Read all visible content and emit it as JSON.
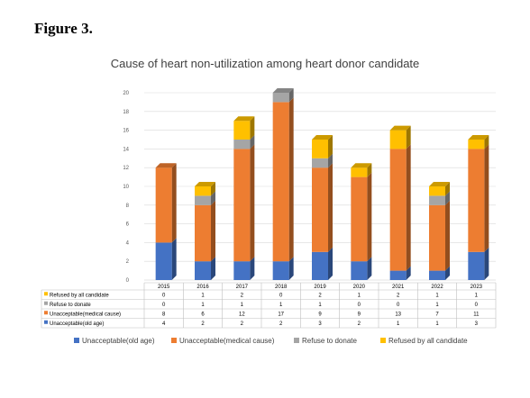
{
  "figure_label": "Figure 3.",
  "chart_data": {
    "type": "bar",
    "stacked": true,
    "three_d": true,
    "title": "Cause of heart non-utilization among heart donor candidate",
    "categories": [
      "2015",
      "2016",
      "2017",
      "2018",
      "2019",
      "2020",
      "2021",
      "2022",
      "2023"
    ],
    "series": [
      {
        "name": "Unacceptable(old age)",
        "short_name": "Unacceptable(old age)",
        "color": "#4472C4",
        "values": [
          4,
          2,
          2,
          2,
          3,
          2,
          1,
          1,
          3
        ]
      },
      {
        "name": "Unacceptable(medical cause)",
        "short_name": "Unacceptable(medical cause)",
        "color": "#ED7D31",
        "values": [
          8,
          6,
          12,
          17,
          9,
          9,
          13,
          7,
          11
        ]
      },
      {
        "name": "Refuse to donate",
        "short_name": "Refuse to donate",
        "color": "#A5A5A5",
        "values": [
          0,
          1,
          1,
          1,
          1,
          0,
          0,
          1,
          0
        ]
      },
      {
        "name": "Refused by all candidate",
        "short_name": "Refused by all candidate",
        "color": "#FFC000",
        "values": [
          0,
          1,
          2,
          0,
          2,
          1,
          2,
          1,
          1
        ]
      }
    ],
    "y_ticks": [
      "0",
      "2",
      "4",
      "6",
      "8",
      "10",
      "12",
      "14",
      "16",
      "18",
      "20"
    ],
    "ylim": [
      0,
      20
    ],
    "grid": true,
    "data_table": true,
    "legend_position": "bottom"
  }
}
